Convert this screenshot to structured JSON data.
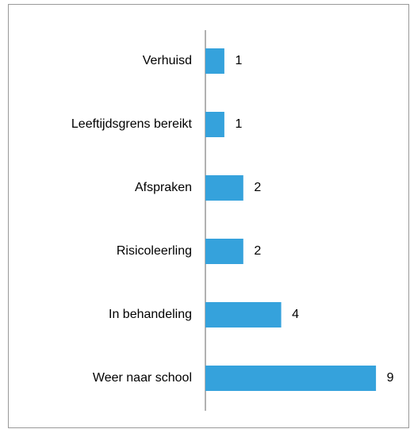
{
  "chart_data": {
    "type": "hbar",
    "categories": [
      "Verhuisd",
      "Leeftijdsgrens bereikt",
      "Afspraken",
      "Risicoleerling",
      "In behandeling",
      "Weer naar school"
    ],
    "values": [
      1,
      1,
      2,
      2,
      4,
      9
    ],
    "color": "#35a2dc",
    "xlim": [
      0,
      10
    ]
  }
}
